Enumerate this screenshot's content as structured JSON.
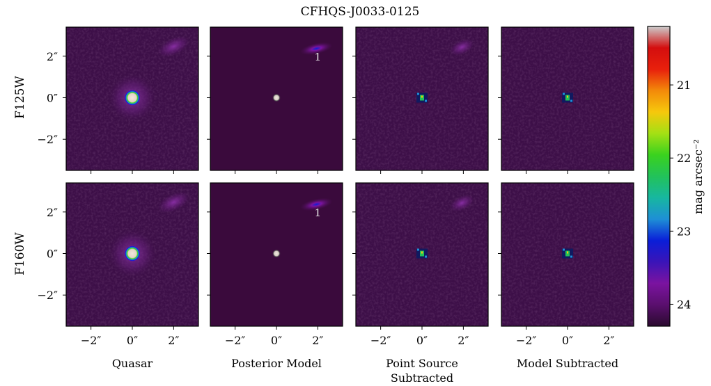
{
  "title": "CFHQS-J0033-0125",
  "row_labels": [
    "F125W",
    "F160W"
  ],
  "column_labels": [
    "Quasar",
    "Posterior Model",
    "Point Source Subtracted",
    "Model Subtracted"
  ],
  "column_label_lines": [
    [
      "Quasar"
    ],
    [
      "Posterior Model"
    ],
    [
      "Point Source",
      "Subtracted"
    ],
    [
      "Model Subtracted"
    ]
  ],
  "x_ticks": [
    "−2″",
    "0″",
    "2″"
  ],
  "y_ticks": [
    "2″",
    "0″",
    "−2″"
  ],
  "colorbar": {
    "label": "mag arcsec⁻²",
    "ticks": [
      "21",
      "22",
      "23",
      "24"
    ],
    "colors": [
      "#2a0a2e",
      "#5a0f6e",
      "#7b13a0",
      "#3a14b8",
      "#0a1ed8",
      "#1e8fd6",
      "#17b7a0",
      "#22c25a",
      "#3ad21e",
      "#a4e014",
      "#f6c80c",
      "#f38a0a",
      "#e8200c",
      "#d40e0e",
      "#cccccc"
    ]
  },
  "panel_colors": {
    "background": "#3d0f48",
    "background_dark": "#230a29",
    "model_background": "#3a0a3c",
    "quasar_core": "#e9dfd4",
    "halo": "#7a2d8c"
  },
  "annotations": [
    "1",
    "1"
  ],
  "chart_data": {
    "type": "heatmap",
    "title": "CFHQS-J0033-0125",
    "rows": [
      "F125W",
      "F160W"
    ],
    "columns": [
      "Quasar",
      "Posterior Model",
      "Point Source Subtracted",
      "Model Subtracted"
    ],
    "x_axis": {
      "unit": "arcsec",
      "ticks": [
        -2,
        0,
        2
      ],
      "lim": [
        -3.2,
        3.2
      ]
    },
    "y_axis": {
      "unit": "arcsec",
      "ticks": [
        -2,
        0,
        2
      ],
      "lim": [
        -3.5,
        3.4
      ]
    },
    "colorbar": {
      "label": "mag arcsec⁻²",
      "ticks": [
        21,
        22,
        23,
        24
      ],
      "range": [
        20.2,
        24.3
      ]
    },
    "sources": [
      {
        "label": "1",
        "x": 2.0,
        "y": 2.4
      }
    ],
    "quasar_position": {
      "x": 0,
      "y": 0
    }
  }
}
